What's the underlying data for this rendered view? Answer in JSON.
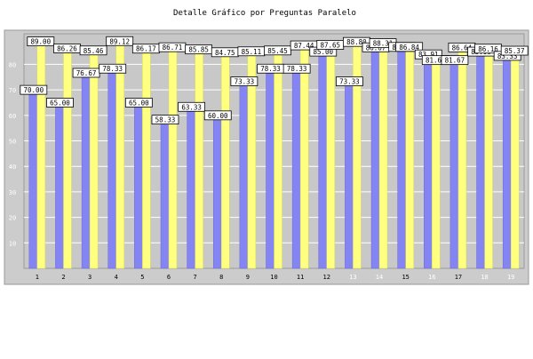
{
  "chart_data": {
    "type": "bar",
    "title": "Detalle Gráfico por Preguntas Paralelo",
    "xlabel": "",
    "ylabel": "",
    "ylim": [
      0,
      92
    ],
    "yticks": [
      10,
      20,
      30,
      40,
      50,
      60,
      70,
      80
    ],
    "grid": true,
    "categories": [
      "1",
      "2",
      "3",
      "4",
      "5",
      "6",
      "7",
      "8",
      "9",
      "10",
      "11",
      "12",
      "13",
      "14",
      "15",
      "16",
      "17",
      "18",
      "19"
    ],
    "muted_categories": [
      "13",
      "14",
      "16",
      "18",
      "19"
    ],
    "series": [
      {
        "color": "#8484f2",
        "values": [
          70.0,
          65.0,
          76.67,
          78.33,
          65.0,
          58.33,
          63.33,
          60.0,
          73.33,
          78.33,
          78.33,
          85.0,
          73.33,
          86.67,
          86.84,
          83.91,
          81.67,
          85.0,
          83.33
        ],
        "labels": [
          "70.00",
          "65.00",
          "76.67",
          "78.33",
          "65.00",
          "58.33",
          "63.33",
          "60.00",
          "73.33",
          "78.33",
          "78.33",
          "85.00",
          "73.33",
          "86.67",
          "86.84",
          "83.91",
          "81.67",
          "85.00",
          "83.33"
        ]
      },
      {
        "color": "#ffff80",
        "values": [
          89.0,
          86.26,
          85.46,
          89.12,
          86.17,
          86.71,
          85.85,
          84.75,
          85.11,
          85.45,
          87.44,
          87.65,
          88.8,
          88.31,
          86.84,
          81.67,
          86.64,
          86.16,
          85.37
        ],
        "labels": [
          "89.00",
          "86.26",
          "85.46",
          "89.12",
          "86.17",
          "86.71",
          "85.85",
          "84.75",
          "85.11",
          "85.45",
          "87.44",
          "87.65",
          "88.80",
          "88.31",
          "86.84",
          "81.67",
          "86.64",
          "86.16",
          "85.37"
        ]
      }
    ],
    "colors": {
      "plot_background": "#c8c8c8",
      "frame_background": "#cccccc",
      "grid": "#ffffff",
      "tick_text": "#000000",
      "muted_tick_text": "#ffffff",
      "label_box": "#ffffff"
    }
  }
}
